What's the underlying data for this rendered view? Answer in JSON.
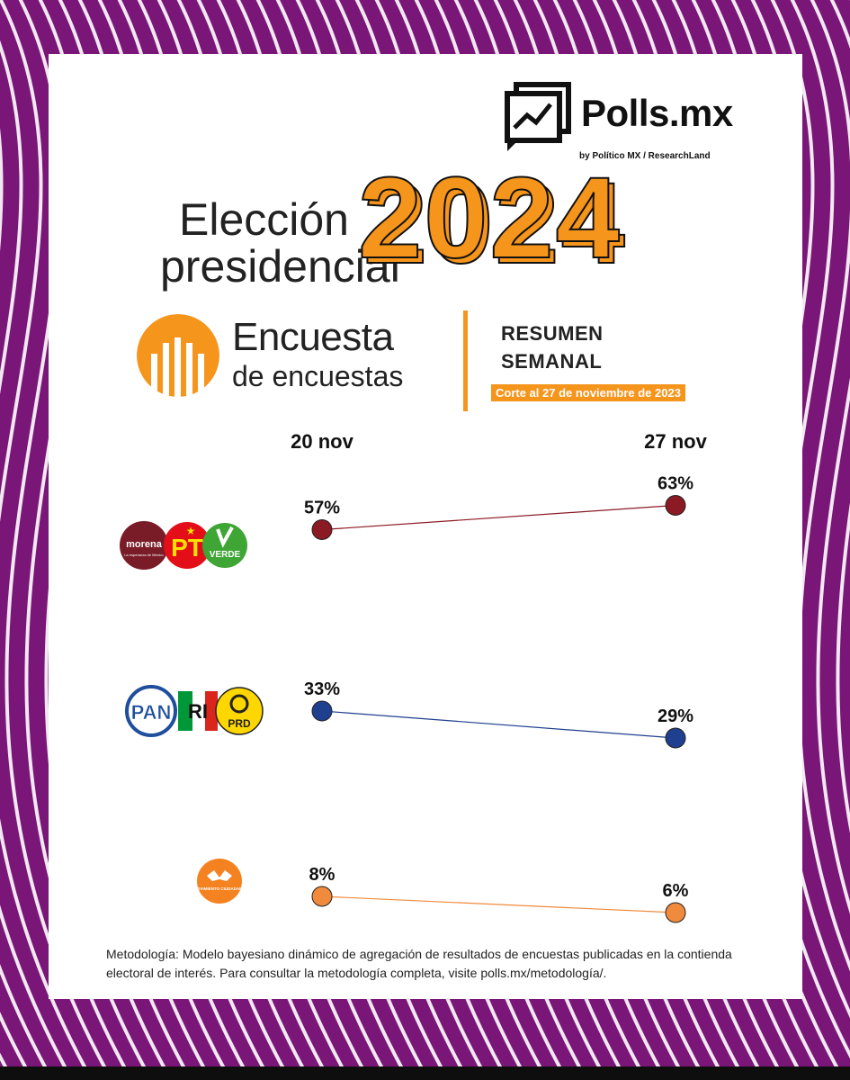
{
  "brand": {
    "name": "Polls.mx",
    "sub": "by Político MX  /  ResearchLand"
  },
  "header": {
    "title_line1": "Elección",
    "title_line2": "presidencial",
    "year": "2024"
  },
  "encuesta": {
    "title": "Encuesta",
    "subtitle": "de encuestas",
    "summary_line1": "RESUMEN",
    "summary_line2": "SEMANAL",
    "cutoff": "Corte al  27 de noviembre de 2023"
  },
  "colors": {
    "background": "#7a1677",
    "accent": "#f5951c",
    "series_1": "#8b1a24",
    "series_2": "#1f3f8f",
    "series_3": "#f08a3c"
  },
  "chart_data": {
    "type": "line",
    "categories": [
      "20 nov",
      "27 nov"
    ],
    "unit": "%",
    "series": [
      {
        "name": "morena PT VERDE",
        "color": "#8b1a24",
        "values": [
          57,
          63
        ],
        "labels": [
          "57%",
          "63%"
        ]
      },
      {
        "name": "PAN PRI PRD",
        "color": "#1f3f8f",
        "values": [
          33,
          29
        ],
        "labels": [
          "33%",
          "29%"
        ]
      },
      {
        "name": "MOVIMIENTO CIUDADANO",
        "color": "#f08a3c",
        "values": [
          8,
          6
        ],
        "labels": [
          "8%",
          "6%"
        ]
      }
    ]
  },
  "logos": {
    "morena": "morena",
    "morena_tag": "La esperanza de México",
    "pt": "PT",
    "verde": "VERDE",
    "pan": "PAN",
    "pri": "RI",
    "prd": "PRD",
    "mc": "MOVIMIENTO CIUDADANO"
  },
  "footer": {
    "methodology": "Metodología: Modelo bayesiano dinámico de agregación de resultados de encuestas publicadas en la contienda electoral de interés. Para consultar la metodología completa, visite polls.mx/metodología/."
  }
}
